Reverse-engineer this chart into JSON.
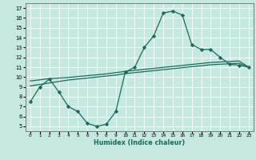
{
  "xlabel": "Humidex (Indice chaleur)",
  "xlim": [
    -0.5,
    23.5
  ],
  "ylim": [
    4.5,
    17.5
  ],
  "xticks": [
    0,
    1,
    2,
    3,
    4,
    5,
    6,
    7,
    8,
    9,
    10,
    11,
    12,
    13,
    14,
    15,
    16,
    17,
    18,
    19,
    20,
    21,
    22,
    23
  ],
  "yticks": [
    5,
    6,
    7,
    8,
    9,
    10,
    11,
    12,
    13,
    14,
    15,
    16,
    17
  ],
  "background_color": "#c5e8e0",
  "grid_color": "#ffffff",
  "line_color": "#1a6b5a",
  "line1_x": [
    0,
    1,
    2,
    3,
    4,
    5,
    6,
    7,
    8,
    9,
    10,
    11,
    12,
    13,
    14,
    15,
    16,
    17,
    18,
    19,
    20,
    21,
    22,
    23
  ],
  "line1_y": [
    7.5,
    9.0,
    9.8,
    8.5,
    7.0,
    6.5,
    5.3,
    5.0,
    5.2,
    6.5,
    10.5,
    11.0,
    13.0,
    14.2,
    16.5,
    16.7,
    16.3,
    13.3,
    12.8,
    12.8,
    12.0,
    11.3,
    11.2,
    11.0
  ],
  "line2_x": [
    0,
    1,
    2,
    3,
    4,
    5,
    6,
    7,
    8,
    9,
    10,
    11,
    12,
    13,
    14,
    15,
    16,
    17,
    18,
    19,
    20,
    21,
    22,
    23
  ],
  "line2_y": [
    9.1,
    9.25,
    9.4,
    9.55,
    9.7,
    9.8,
    9.9,
    10.0,
    10.1,
    10.2,
    10.35,
    10.45,
    10.55,
    10.65,
    10.75,
    10.85,
    10.95,
    11.05,
    11.15,
    11.25,
    11.3,
    11.35,
    11.4,
    11.0
  ],
  "line3_x": [
    0,
    1,
    2,
    3,
    4,
    5,
    6,
    7,
    8,
    9,
    10,
    11,
    12,
    13,
    14,
    15,
    16,
    17,
    18,
    19,
    20,
    21,
    22,
    23
  ],
  "line3_y": [
    9.6,
    9.72,
    9.84,
    9.9,
    9.96,
    10.05,
    10.14,
    10.23,
    10.32,
    10.45,
    10.58,
    10.68,
    10.78,
    10.88,
    10.98,
    11.08,
    11.18,
    11.28,
    11.38,
    11.48,
    11.53,
    11.58,
    11.63,
    11.0
  ],
  "marker": "D",
  "markersize": 2.2,
  "linewidth": 0.9
}
